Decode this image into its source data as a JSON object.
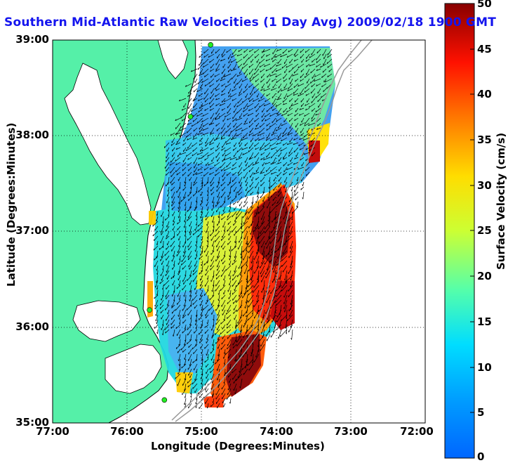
{
  "title": "Southern Mid-Atlantic Raw Velocities (1 Day Avg) 2009/02/18 1900 GMT",
  "axes": {
    "xlabel": "Longitude (Degrees:Minutes)",
    "ylabel": "Latitude (Degrees:Minutes)",
    "xticks": [
      "77:00",
      "76:00",
      "75:00",
      "74:00",
      "73:00",
      "72:00"
    ],
    "yticks": [
      "39:00",
      "38:00",
      "37:00",
      "36:00",
      "35:00"
    ],
    "xlim": [
      -77,
      -72
    ],
    "ylim": [
      35,
      39
    ],
    "grid": "dotted"
  },
  "colorbar": {
    "label": "Surface Velocity (cm/s)",
    "ticks": [
      "50",
      "45",
      "40",
      "35",
      "30",
      "25",
      "20",
      "15",
      "10",
      "5",
      "0"
    ],
    "range": [
      0,
      50
    ],
    "colormap": "jet"
  },
  "colors": {
    "land": "#55f0a8",
    "coastline": "#000000",
    "bathymetry": "#999999",
    "title": "#1414ee",
    "site_marker": "#22ee22"
  },
  "sites": [
    {
      "lon": -74.88,
      "lat": 38.95
    },
    {
      "lon": -75.15,
      "lat": 38.2
    },
    {
      "lon": -75.7,
      "lat": 36.18
    },
    {
      "lon": -75.5,
      "lat": 35.24
    }
  ]
}
